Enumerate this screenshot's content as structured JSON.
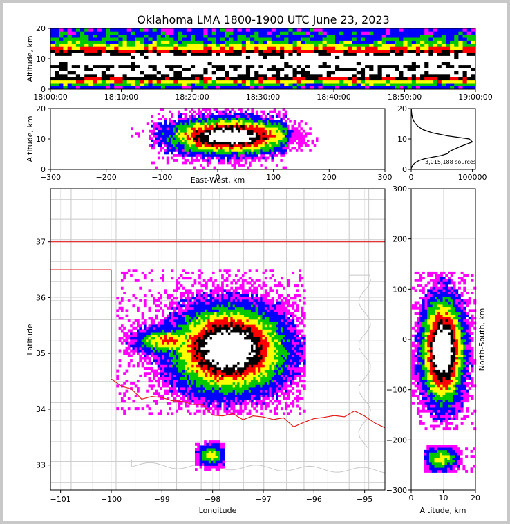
{
  "title": "Oklahoma LMA 1800-1900 UTC June 23, 2023",
  "colors": {
    "state_border": "#e31a1c",
    "county_border": "#c8c8c8",
    "density_scale": [
      "#ff00ff",
      "#0000ff",
      "#00c800",
      "#ffff00",
      "#ff0000",
      "#000000",
      "#ffffff"
    ]
  },
  "chart_data": [
    {
      "id": "time_height",
      "type": "heatmap",
      "ylabel": "Altitude, km",
      "xlabel": "",
      "ylim": [
        0,
        20
      ],
      "yticks": [
        "0",
        "10",
        "20"
      ],
      "xlim": [
        "18:00:00",
        "19:00:00"
      ],
      "xticks": [
        "18:00:00",
        "18:10:00",
        "18:20:00",
        "18:30:00",
        "18:40:00",
        "18:50:00",
        "19:00:00"
      ],
      "density_by_altitude_km": [
        [
          0.5,
          0.2
        ],
        [
          1.5,
          0.35
        ],
        [
          2.5,
          0.5
        ],
        [
          3.5,
          0.75
        ],
        [
          4.5,
          0.85
        ],
        [
          5.5,
          0.9
        ],
        [
          6.5,
          0.88
        ],
        [
          7.5,
          0.85
        ],
        [
          8.5,
          0.95
        ],
        [
          9.5,
          1.0
        ],
        [
          10.5,
          0.95
        ],
        [
          11.5,
          0.85
        ],
        [
          12.5,
          0.7
        ],
        [
          13.5,
          0.55
        ],
        [
          14.5,
          0.45
        ],
        [
          15.5,
          0.35
        ],
        [
          16.5,
          0.3
        ],
        [
          17.5,
          0.25
        ],
        [
          18.5,
          0.22
        ],
        [
          19.5,
          0.2
        ]
      ]
    },
    {
      "id": "ew_altitude",
      "type": "heatmap",
      "ylabel": "Altitude, km",
      "xlabel": "East-West, km",
      "xlim": [
        -300,
        300
      ],
      "ylim": [
        0,
        20
      ],
      "xticks": [
        "−300",
        "−200",
        "−100",
        "0",
        "100",
        "200",
        "300"
      ],
      "yticks": [
        "0",
        "10",
        "20"
      ]
    },
    {
      "id": "altitude_histogram",
      "type": "line",
      "annotation": "3,015,188 sources",
      "xlim": [
        0,
        105000
      ],
      "ylim": [
        0,
        20
      ],
      "xticks": [
        "0",
        "100000"
      ],
      "yticks": [
        "0",
        "10",
        "20"
      ],
      "x": [
        100,
        1500,
        3000,
        5500,
        9000,
        14000,
        22000,
        35000,
        50000,
        60000,
        63000,
        80000,
        100000,
        95000,
        60000,
        35000,
        20000,
        12000,
        7000,
        4000,
        2000,
        1000,
        500,
        200
      ],
      "y": [
        0.3,
        1.0,
        1.5,
        2.0,
        2.5,
        3.0,
        3.5,
        4.0,
        4.6,
        5.2,
        6.0,
        7.5,
        9.0,
        10.0,
        11.0,
        12.0,
        13.0,
        14.0,
        15.0,
        16.0,
        17.0,
        18.0,
        19.0,
        20.0
      ]
    },
    {
      "id": "plan_view",
      "type": "heatmap",
      "xlabel": "Longitude",
      "ylabel": "Latitude",
      "xlim": [
        -101.2,
        -94.6
      ],
      "ylim": [
        32.55,
        37.95
      ],
      "xticks": [
        "−101",
        "−100",
        "−99",
        "−98",
        "−97",
        "−96",
        "−95"
      ],
      "yticks": [
        "33",
        "34",
        "35",
        "36",
        "37"
      ]
    },
    {
      "id": "ns_altitude",
      "type": "heatmap",
      "xlabel": "Altitude, km",
      "ylabel": "North-South, km",
      "xlim": [
        0,
        20
      ],
      "ylim": [
        -300,
        300
      ],
      "xticks": [
        "0",
        "10",
        "20"
      ],
      "yticks": [
        "−300",
        "−200",
        "−100",
        "0",
        "100",
        "200",
        "300"
      ]
    }
  ]
}
